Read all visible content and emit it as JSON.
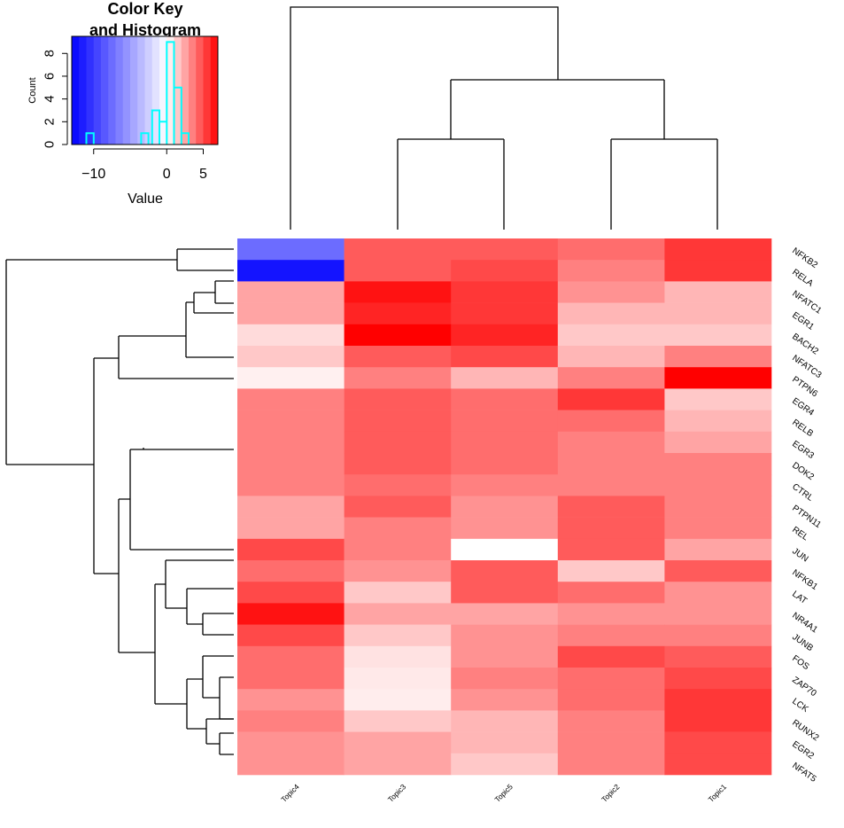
{
  "chart_data": {
    "type": "heatmap",
    "columns": [
      "Topic4",
      "Topic3",
      "Topic5",
      "Topic2",
      "Topic1"
    ],
    "rows": [
      "NFKB2",
      "RELA",
      "NFATC1",
      "EGR1",
      "BACH2",
      "NFATC3",
      "PTPN6",
      "EGR4",
      "RELB",
      "EGR3",
      "DOK2",
      "CTRL",
      "PTPN11",
      "REL",
      "JUN",
      "NFKB1",
      "LAT",
      "NR4A1",
      "JUNB",
      "FOS",
      "ZAP70",
      "LCK",
      "RUNX2",
      "EGR2",
      "NFAT5"
    ],
    "values": [
      [
        -7.5,
        4.5,
        4.5,
        4.0,
        5.5
      ],
      [
        -12.0,
        4.5,
        5.0,
        3.5,
        5.5
      ],
      [
        2.5,
        6.5,
        5.5,
        3.0,
        2.0
      ],
      [
        2.5,
        6.0,
        5.5,
        2.0,
        2.0
      ],
      [
        1.0,
        7.0,
        6.0,
        1.5,
        1.5
      ],
      [
        1.5,
        4.5,
        5.0,
        2.0,
        3.5
      ],
      [
        0.4,
        3.5,
        2.0,
        3.5,
        7.0
      ],
      [
        3.5,
        4.5,
        4.0,
        5.5,
        1.5
      ],
      [
        3.5,
        4.5,
        4.0,
        4.0,
        2.0
      ],
      [
        3.5,
        4.5,
        4.0,
        3.5,
        2.5
      ],
      [
        3.5,
        4.5,
        4.0,
        3.5,
        3.5
      ],
      [
        3.5,
        4.0,
        3.5,
        3.5,
        3.5
      ],
      [
        2.5,
        4.5,
        3.0,
        4.5,
        3.5
      ],
      [
        2.5,
        3.5,
        3.0,
        4.5,
        3.5
      ],
      [
        5.0,
        3.5,
        0.0,
        4.5,
        2.5
      ],
      [
        4.0,
        3.0,
        4.5,
        1.5,
        4.5
      ],
      [
        5.0,
        1.5,
        4.5,
        4.0,
        3.0
      ],
      [
        6.5,
        2.5,
        2.5,
        3.0,
        3.0
      ],
      [
        5.0,
        1.5,
        3.0,
        3.5,
        3.5
      ],
      [
        4.0,
        0.8,
        3.0,
        5.0,
        4.5
      ],
      [
        4.0,
        0.6,
        3.5,
        4.0,
        5.0
      ],
      [
        3.0,
        0.5,
        3.0,
        4.0,
        5.5
      ],
      [
        3.5,
        1.5,
        2.0,
        3.5,
        5.5
      ],
      [
        3.0,
        2.5,
        2.0,
        3.5,
        5.0
      ],
      [
        3.0,
        2.5,
        1.5,
        3.5,
        5.0
      ]
    ],
    "color_scale": {
      "low": "#0000ff",
      "mid": "#ffffff",
      "high": "#ff0000",
      "min": -13,
      "max": 7
    },
    "legend": {
      "title": "Color Key",
      "subtitle": "and Histogram",
      "xlabel": "Value",
      "ylabel": "Count",
      "x_ticks": [
        -10,
        0,
        5
      ],
      "y_ticks": [
        0,
        2,
        4,
        6,
        8
      ],
      "histogram_color": "#00ffff",
      "histogram": [
        {
          "x": -10.5,
          "count": 1
        },
        {
          "x": -3,
          "count": 1
        },
        {
          "x": -1.5,
          "count": 3
        },
        {
          "x": -0.5,
          "count": 2
        },
        {
          "x": 0.5,
          "count": 9
        },
        {
          "x": 1.5,
          "count": 5
        },
        {
          "x": 2.5,
          "count": 1
        }
      ]
    }
  }
}
